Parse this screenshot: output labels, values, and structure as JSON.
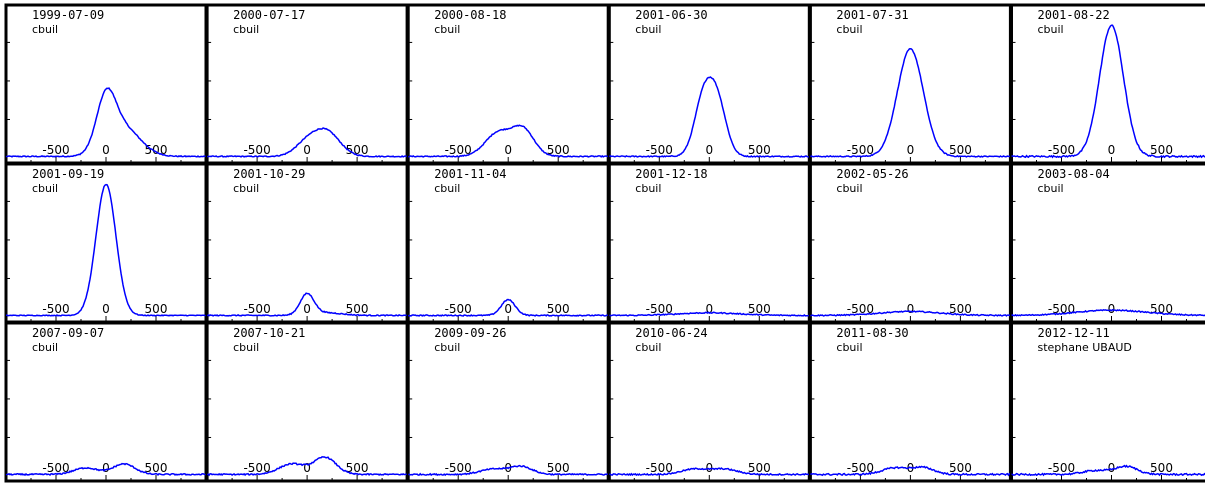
{
  "chart_data": {
    "type": "line",
    "layout": {
      "rows": 3,
      "cols": 6
    },
    "x_tick_labels": [
      "-500",
      "0",
      "500"
    ],
    "x_ticks": [
      -500,
      0,
      500
    ],
    "xlim": [
      -1000,
      1000
    ],
    "ylim": [
      0,
      1
    ],
    "line_color": "#0000ff",
    "panels": [
      {
        "date": "1999-07-09",
        "observer": "cbuil",
        "peaks": [
          [
            0,
            0.38,
            95
          ],
          [
            170,
            0.22,
            170
          ]
        ],
        "noise": 0.004
      },
      {
        "date": "2000-07-17",
        "observer": "cbuil",
        "peaks": [
          [
            0,
            0.1,
            120
          ],
          [
            200,
            0.18,
            130
          ]
        ],
        "noise": 0.004
      },
      {
        "date": "2000-08-18",
        "observer": "cbuil",
        "peaks": [
          [
            -100,
            0.18,
            130
          ],
          [
            150,
            0.2,
            110
          ]
        ],
        "noise": 0.004
      },
      {
        "date": "2001-06-30",
        "observer": "cbuil",
        "peaks": [
          [
            -60,
            0.42,
            90
          ],
          [
            80,
            0.4,
            90
          ]
        ],
        "noise": 0.004
      },
      {
        "date": "2001-07-31",
        "observer": "cbuil",
        "peaks": [
          [
            0,
            0.82,
            130
          ]
        ],
        "noise": 0.004
      },
      {
        "date": "2001-08-22",
        "observer": "cbuil",
        "peaks": [
          [
            0,
            1.0,
            120
          ]
        ],
        "noise": 0.006
      },
      {
        "date": "2001-09-19",
        "observer": "cbuil",
        "peaks": [
          [
            0,
            1.0,
            100
          ]
        ],
        "noise": 0.003
      },
      {
        "date": "2001-10-29",
        "observer": "cbuil",
        "peaks": [
          [
            0,
            0.16,
            70
          ],
          [
            200,
            0.02,
            150
          ]
        ],
        "noise": 0.004
      },
      {
        "date": "2001-11-04",
        "observer": "cbuil",
        "peaks": [
          [
            0,
            0.12,
            70
          ]
        ],
        "noise": 0.004
      },
      {
        "date": "2001-12-18",
        "observer": "cbuil",
        "peaks": [
          [
            0,
            0.02,
            300
          ]
        ],
        "noise": 0.004
      },
      {
        "date": "2002-05-26",
        "observer": "cbuil",
        "peaks": [
          [
            0,
            0.03,
            300
          ]
        ],
        "noise": 0.004
      },
      {
        "date": "2003-08-04",
        "observer": "cbuil",
        "peaks": [
          [
            0,
            0.04,
            350
          ]
        ],
        "noise": 0.004
      },
      {
        "date": "2007-09-07",
        "observer": "cbuil",
        "peaks": [
          [
            -200,
            0.05,
            120
          ],
          [
            180,
            0.08,
            110
          ]
        ],
        "noise": 0.005
      },
      {
        "date": "2007-10-21",
        "observer": "cbuil",
        "peaks": [
          [
            -150,
            0.08,
            130
          ],
          [
            180,
            0.13,
            110
          ]
        ],
        "noise": 0.005
      },
      {
        "date": "2009-09-26",
        "observer": "cbuil",
        "peaks": [
          [
            -150,
            0.04,
            130
          ],
          [
            130,
            0.06,
            110
          ]
        ],
        "noise": 0.005
      },
      {
        "date": "2010-06-24",
        "observer": "cbuil",
        "peaks": [
          [
            -150,
            0.04,
            130
          ],
          [
            150,
            0.04,
            130
          ]
        ],
        "noise": 0.005
      },
      {
        "date": "2011-08-30",
        "observer": "cbuil",
        "peaks": [
          [
            -150,
            0.05,
            130
          ],
          [
            130,
            0.05,
            110
          ]
        ],
        "noise": 0.006
      },
      {
        "date": "2012-12-11",
        "observer": "stephane UBAUD",
        "peaks": [
          [
            -150,
            0.03,
            130
          ],
          [
            150,
            0.06,
            110
          ]
        ],
        "noise": 0.006
      }
    ]
  }
}
